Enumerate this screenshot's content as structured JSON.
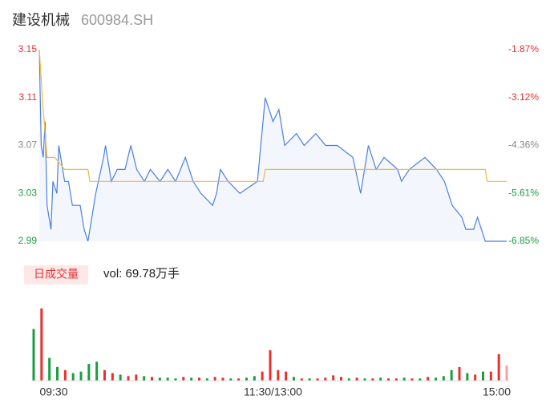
{
  "header": {
    "name": "建设机械",
    "code": "600984.SH"
  },
  "chart_data": [
    {
      "type": "line",
      "x": [
        0,
        1,
        2,
        3,
        4,
        6,
        7,
        9,
        10,
        13,
        15,
        17,
        21,
        23,
        25,
        27,
        29,
        33,
        34,
        37,
        40,
        44,
        47,
        50,
        54,
        57,
        62,
        66,
        70,
        75,
        79,
        83,
        89,
        91,
        93,
        97,
        103,
        112,
        116,
        120,
        123,
        126,
        132,
        136,
        142,
        147,
        153,
        161,
        165,
        169,
        173,
        177,
        184,
        186,
        190,
        198,
        204,
        208,
        212,
        217,
        219,
        223,
        225,
        229,
        240
      ],
      "xlim": [
        0,
        240
      ],
      "ylim": [
        2.99,
        3.15
      ],
      "yticks": [
        3.15,
        3.11,
        3.07,
        3.03,
        2.99
      ],
      "y2lim": [
        -6.85,
        -1.87
      ],
      "y2ticks": [
        {
          "value": -1.87,
          "label": "-1.87%"
        },
        {
          "value": -3.12,
          "label": "-3.12%"
        },
        {
          "value": -4.36,
          "label": "-4.36%"
        },
        {
          "value": -5.61,
          "label": "-5.61%"
        },
        {
          "value": -6.85,
          "label": "-6.85%"
        }
      ],
      "tick_colors": [
        "#e8312f",
        "#e8312f",
        "#888888",
        "#1a9e3f",
        "#1a9e3f"
      ],
      "series": [
        {
          "color": "#4a7fe0",
          "values": [
            3.15,
            3.07,
            3.06,
            3.09,
            3.02,
            3.0,
            3.04,
            3.03,
            3.07,
            3.04,
            3.04,
            3.02,
            3.02,
            3.0,
            2.99,
            3.01,
            3.03,
            3.06,
            3.07,
            3.04,
            3.05,
            3.05,
            3.07,
            3.05,
            3.04,
            3.05,
            3.04,
            3.05,
            3.04,
            3.06,
            3.04,
            3.03,
            3.02,
            3.03,
            3.05,
            3.04,
            3.03,
            3.04,
            3.11,
            3.09,
            3.1,
            3.07,
            3.08,
            3.07,
            3.08,
            3.07,
            3.07,
            3.06,
            3.03,
            3.07,
            3.05,
            3.06,
            3.05,
            3.04,
            3.05,
            3.06,
            3.05,
            3.04,
            3.02,
            3.01,
            3.0,
            3.0,
            3.01,
            2.99,
            2.99
          ]
        },
        {
          "color": "#f5b83d",
          "x": [
            0,
            2,
            4,
            8,
            13,
            25,
            26,
            115,
            116,
            229,
            230,
            240
          ],
          "values": [
            3.15,
            3.1,
            3.06,
            3.06,
            3.05,
            3.05,
            3.04,
            3.04,
            3.05,
            3.05,
            3.04,
            3.04
          ]
        }
      ]
    },
    {
      "type": "bar",
      "legend_label": "日成交量",
      "annotation": "vol: 69.78万手",
      "x": [
        0,
        4,
        8,
        12,
        16,
        20,
        24,
        28,
        32,
        36,
        40,
        44,
        48,
        52,
        56,
        60,
        64,
        68,
        72,
        76,
        80,
        84,
        88,
        92,
        96,
        100,
        104,
        108,
        112,
        116,
        120,
        124,
        128,
        132,
        136,
        140,
        144,
        148,
        152,
        156,
        160,
        164,
        168,
        172,
        176,
        180,
        184,
        188,
        192,
        196,
        200,
        204,
        208,
        212,
        216,
        220,
        224,
        228,
        232,
        236,
        240
      ],
      "xlim": [
        0,
        240
      ],
      "ylim": [
        0,
        100
      ],
      "xticks": [
        {
          "value": 0,
          "label": "09:30"
        },
        {
          "value": 120,
          "label": "11:30/13:00"
        },
        {
          "value": 240,
          "label": "15:00"
        }
      ],
      "values": [
        68,
        95,
        30,
        18,
        14,
        10,
        12,
        22,
        25,
        14,
        10,
        8,
        6,
        8,
        6,
        5,
        4,
        4,
        3,
        5,
        4,
        4,
        3,
        5,
        4,
        3,
        3,
        4,
        6,
        12,
        40,
        14,
        12,
        5,
        3,
        3,
        3,
        4,
        7,
        5,
        3,
        4,
        3,
        3,
        4,
        3,
        3,
        4,
        3,
        3,
        5,
        4,
        6,
        14,
        18,
        10,
        8,
        12,
        12,
        35,
        20
      ],
      "colors": [
        "#1a9e3f",
        "#e8312f",
        "#1a9e3f",
        "#1a9e3f",
        "#e8312f",
        "#1a9e3f",
        "#1a9e3f",
        "#1a9e3f",
        "#1a9e3f",
        "#e8312f",
        "#e8312f",
        "#1a9e3f",
        "#e8312f",
        "#e8312f",
        "#1a9e3f",
        "#e8312f",
        "#1a9e3f",
        "#1a9e3f",
        "#1a9e3f",
        "#e8312f",
        "#1a9e3f",
        "#e8312f",
        "#1a9e3f",
        "#e8312f",
        "#e8312f",
        "#1a9e3f",
        "#e8312f",
        "#1a9e3f",
        "#1a9e3f",
        "#e8312f",
        "#e8312f",
        "#e8312f",
        "#e8312f",
        "#1a9e3f",
        "#e8312f",
        "#1a9e3f",
        "#e8312f",
        "#e8312f",
        "#e8312f",
        "#e8312f",
        "#1a9e3f",
        "#e8312f",
        "#1a9e3f",
        "#e8312f",
        "#1a9e3f",
        "#e8312f",
        "#e8312f",
        "#1a9e3f",
        "#e8312f",
        "#1a9e3f",
        "#e8312f",
        "#1a9e3f",
        "#1a9e3f",
        "#1a9e3f",
        "#e8312f",
        "#1a9e3f",
        "#e8312f",
        "#1a9e3f",
        "#e8312f",
        "#e8312f",
        "#f4a0a0"
      ]
    }
  ]
}
